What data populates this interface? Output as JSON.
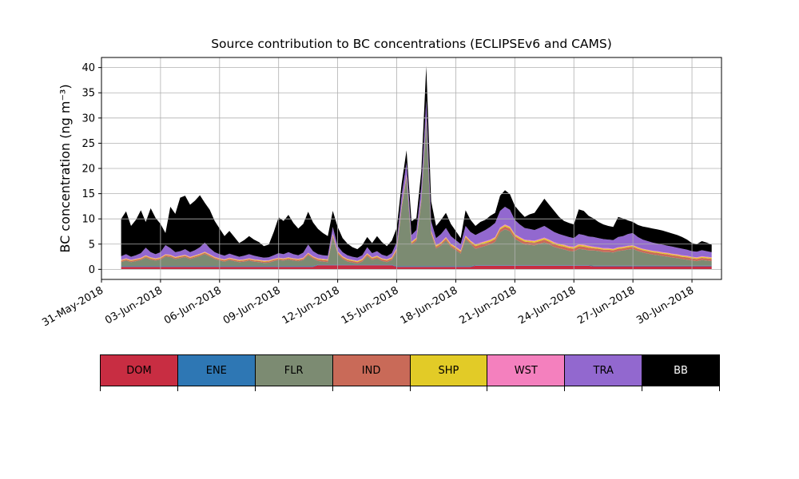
{
  "title": "Source contribution to BC concentrations (ECLIPSEv6 and CAMS)",
  "axes": {
    "ylabel": "BC concentration (ng m⁻³)",
    "y_ticks": [
      0,
      5,
      10,
      15,
      20,
      25,
      30,
      35,
      40
    ],
    "x_tick_positions": [
      0,
      3,
      6,
      9,
      12,
      15,
      18,
      21,
      24,
      27,
      30
    ],
    "x_tick_labels": [
      "31-May-2018",
      "03-Jun-2018",
      "06-Jun-2018",
      "09-Jun-2018",
      "12-Jun-2018",
      "15-Jun-2018",
      "18-Jun-2018",
      "21-Jun-2018",
      "24-Jun-2018",
      "27-Jun-2018",
      "30-Jun-2018"
    ],
    "grid_color": "#b0b0b0",
    "grid": true
  },
  "chart_data": {
    "type": "area",
    "stacked": true,
    "title": "Source contribution to BC concentrations (ECLIPSEv6 and CAMS)",
    "xlabel": "",
    "ylabel": "BC concentration (ng m⁻³)",
    "x_unit": "days since 31-May-2018",
    "xlim": [
      0,
      31.5
    ],
    "ylim": [
      -2,
      42
    ],
    "legend_position": "bottom-table",
    "x": [
      1.0,
      1.25,
      1.5,
      1.75,
      2.0,
      2.25,
      2.5,
      2.75,
      3.0,
      3.25,
      3.5,
      3.75,
      4.0,
      4.25,
      4.5,
      4.75,
      5.0,
      5.25,
      5.5,
      5.75,
      6.0,
      6.25,
      6.5,
      6.75,
      7.0,
      7.25,
      7.5,
      7.75,
      8.0,
      8.25,
      8.5,
      8.75,
      9.0,
      9.25,
      9.5,
      9.75,
      10.0,
      10.25,
      10.5,
      10.75,
      11.0,
      11.25,
      11.5,
      11.75,
      12.0,
      12.25,
      12.5,
      12.75,
      13.0,
      13.25,
      13.5,
      13.75,
      14.0,
      14.25,
      14.5,
      14.75,
      15.0,
      15.25,
      15.5,
      15.75,
      16.0,
      16.25,
      16.5,
      16.75,
      17.0,
      17.25,
      17.5,
      17.75,
      18.0,
      18.25,
      18.5,
      18.75,
      19.0,
      19.25,
      19.5,
      19.75,
      20.0,
      20.25,
      20.5,
      20.75,
      21.0,
      21.25,
      21.5,
      21.75,
      22.0,
      22.25,
      22.5,
      22.75,
      23.0,
      23.25,
      23.5,
      23.75,
      24.0,
      24.25,
      24.5,
      24.75,
      25.0,
      25.25,
      25.5,
      25.75,
      26.0,
      26.25,
      26.5,
      26.75,
      27.0,
      27.25,
      27.5,
      27.75,
      28.0,
      28.25,
      28.5,
      28.75,
      29.0,
      29.25,
      29.5,
      29.75,
      30.0,
      30.25,
      30.5,
      30.75,
      31.0
    ],
    "series": [
      {
        "name": "DOM",
        "color": "#c82d42",
        "values": [
          0.5,
          0.5,
          0.5,
          0.5,
          0.5,
          0.5,
          0.5,
          0.5,
          0.5,
          0.5,
          0.5,
          0.5,
          0.5,
          0.5,
          0.5,
          0.5,
          0.5,
          0.5,
          0.5,
          0.5,
          0.5,
          0.5,
          0.5,
          0.5,
          0.5,
          0.5,
          0.5,
          0.5,
          0.5,
          0.5,
          0.5,
          0.5,
          0.5,
          0.5,
          0.5,
          0.5,
          0.5,
          0.5,
          0.5,
          0.5,
          0.8,
          0.8,
          0.8,
          0.8,
          0.8,
          0.8,
          0.8,
          0.8,
          0.8,
          0.8,
          0.8,
          0.8,
          0.8,
          0.8,
          0.8,
          0.8,
          0.5,
          0.5,
          0.5,
          0.5,
          0.5,
          0.5,
          0.5,
          0.5,
          0.5,
          0.5,
          0.5,
          0.5,
          0.5,
          0.5,
          0.5,
          0.5,
          0.7,
          0.7,
          0.7,
          0.7,
          0.7,
          0.7,
          0.7,
          0.7,
          0.7,
          0.7,
          0.7,
          0.7,
          0.7,
          0.7,
          0.7,
          0.7,
          0.7,
          0.7,
          0.7,
          0.7,
          0.7,
          0.7,
          0.7,
          0.7,
          0.6,
          0.6,
          0.6,
          0.6,
          0.6,
          0.6,
          0.6,
          0.6,
          0.6,
          0.6,
          0.6,
          0.6,
          0.6,
          0.6,
          0.6,
          0.6,
          0.6,
          0.6,
          0.6,
          0.6,
          0.6,
          0.6,
          0.6,
          0.6,
          0.6
        ]
      },
      {
        "name": "ENE",
        "color": "#2e77b4",
        "values": [
          0.12,
          0.12,
          0.12,
          0.12,
          0.12,
          0.12,
          0.12,
          0.12,
          0.12,
          0.12,
          0.12,
          0.12,
          0.12,
          0.12,
          0.12,
          0.12,
          0.12,
          0.12,
          0.12,
          0.12,
          0.12,
          0.12,
          0.12,
          0.12,
          0.12,
          0.12,
          0.12,
          0.12,
          0.12,
          0.12,
          0.12,
          0.12,
          0.12,
          0.12,
          0.12,
          0.12,
          0.12,
          0.12,
          0.12,
          0.12,
          0.12,
          0.12,
          0.12,
          0.12,
          0.12,
          0.12,
          0.12,
          0.12,
          0.12,
          0.12,
          0.12,
          0.12,
          0.12,
          0.12,
          0.12,
          0.12,
          0.12,
          0.12,
          0.12,
          0.12,
          0.12,
          0.12,
          0.12,
          0.12,
          0.12,
          0.12,
          0.12,
          0.12,
          0.12,
          0.12,
          0.12,
          0.12,
          0.12,
          0.12,
          0.12,
          0.12,
          0.12,
          0.12,
          0.12,
          0.12,
          0.12,
          0.12,
          0.12,
          0.12,
          0.12,
          0.12,
          0.12,
          0.12,
          0.12,
          0.12,
          0.12,
          0.12,
          0.12,
          0.12,
          0.12,
          0.12,
          0.12,
          0.12,
          0.12,
          0.12,
          0.12,
          0.12,
          0.12,
          0.12,
          0.12,
          0.12,
          0.12,
          0.12,
          0.12,
          0.12,
          0.12,
          0.12,
          0.12,
          0.12,
          0.12,
          0.12,
          0.12,
          0.12,
          0.12,
          0.12,
          0.12
        ]
      },
      {
        "name": "FLR",
        "color": "#7c8b72",
        "values": [
          0.81,
          1.11,
          0.81,
          1.01,
          1.21,
          1.71,
          1.31,
          1.11,
          1.31,
          1.91,
          1.81,
          1.41,
          1.61,
          1.81,
          1.41,
          1.71,
          2.01,
          2.41,
          1.91,
          1.41,
          1.11,
          0.91,
          1.21,
          1.01,
          0.81,
          0.91,
          1.11,
          0.91,
          0.81,
          0.66,
          0.71,
          1.01,
          1.21,
          1.11,
          1.31,
          1.11,
          1.01,
          1.21,
          2.21,
          1.51,
          0.73,
          0.63,
          0.53,
          5.53,
          2.13,
          1.13,
          0.63,
          0.43,
          0.23,
          0.63,
          1.73,
          0.93,
          1.23,
          0.73,
          0.53,
          0.93,
          2.91,
          11.51,
          17.51,
          4.21,
          5.01,
          12.81,
          28.91,
          6.41,
          3.51,
          4.11,
          5.11,
          3.81,
          3.21,
          2.51,
          5.41,
          4.41,
          3.23,
          3.53,
          3.83,
          4.13,
          4.63,
          6.53,
          7.13,
          6.73,
          5.23,
          4.63,
          4.13,
          4.03,
          3.93,
          4.23,
          4.53,
          4.13,
          3.63,
          3.33,
          3.13,
          2.83,
          2.73,
          3.23,
          3.13,
          2.93,
          3.01,
          2.91,
          2.71,
          2.71,
          2.61,
          2.91,
          3.01,
          3.21,
          3.31,
          2.91,
          2.61,
          2.41,
          2.21,
          2.11,
          1.91,
          1.81,
          1.61,
          1.51,
          1.31,
          1.21,
          1.01,
          0.91,
          1.11,
          1.01,
          0.91
        ]
      },
      {
        "name": "IND",
        "color": "#c96a58",
        "values": [
          0.25,
          0.25,
          0.25,
          0.25,
          0.25,
          0.25,
          0.25,
          0.25,
          0.25,
          0.25,
          0.25,
          0.25,
          0.25,
          0.25,
          0.25,
          0.25,
          0.25,
          0.25,
          0.25,
          0.25,
          0.25,
          0.25,
          0.25,
          0.25,
          0.25,
          0.25,
          0.25,
          0.25,
          0.25,
          0.25,
          0.25,
          0.25,
          0.25,
          0.25,
          0.25,
          0.25,
          0.25,
          0.25,
          0.25,
          0.25,
          0.3,
          0.3,
          0.3,
          0.3,
          0.3,
          0.3,
          0.3,
          0.3,
          0.3,
          0.3,
          0.3,
          0.3,
          0.3,
          0.3,
          0.3,
          0.3,
          0.35,
          0.35,
          0.35,
          0.35,
          0.35,
          0.35,
          0.35,
          0.35,
          0.35,
          0.35,
          0.35,
          0.35,
          0.35,
          0.35,
          0.35,
          0.35,
          0.55,
          0.55,
          0.55,
          0.55,
          0.55,
          0.55,
          0.55,
          0.55,
          0.55,
          0.55,
          0.55,
          0.55,
          0.55,
          0.55,
          0.55,
          0.55,
          0.55,
          0.55,
          0.55,
          0.55,
          0.55,
          0.55,
          0.55,
          0.55,
          0.45,
          0.45,
          0.45,
          0.45,
          0.45,
          0.45,
          0.45,
          0.45,
          0.45,
          0.45,
          0.45,
          0.45,
          0.45,
          0.45,
          0.45,
          0.45,
          0.45,
          0.45,
          0.45,
          0.45,
          0.45,
          0.45,
          0.45,
          0.45,
          0.45
        ]
      },
      {
        "name": "SHP",
        "color": "#e2cb27",
        "values": [
          0.12,
          0.12,
          0.12,
          0.12,
          0.12,
          0.12,
          0.12,
          0.12,
          0.12,
          0.12,
          0.12,
          0.12,
          0.12,
          0.12,
          0.12,
          0.12,
          0.12,
          0.12,
          0.12,
          0.12,
          0.12,
          0.12,
          0.12,
          0.12,
          0.12,
          0.12,
          0.12,
          0.12,
          0.12,
          0.12,
          0.12,
          0.12,
          0.12,
          0.12,
          0.12,
          0.12,
          0.12,
          0.12,
          0.12,
          0.12,
          0.15,
          0.15,
          0.15,
          0.15,
          0.15,
          0.15,
          0.15,
          0.15,
          0.15,
          0.15,
          0.15,
          0.15,
          0.15,
          0.15,
          0.15,
          0.15,
          0.2,
          0.2,
          0.2,
          0.2,
          0.2,
          0.2,
          0.2,
          0.2,
          0.2,
          0.2,
          0.2,
          0.2,
          0.2,
          0.2,
          0.2,
          0.2,
          0.25,
          0.25,
          0.25,
          0.25,
          0.25,
          0.25,
          0.25,
          0.25,
          0.25,
          0.25,
          0.25,
          0.25,
          0.25,
          0.25,
          0.25,
          0.25,
          0.25,
          0.25,
          0.25,
          0.25,
          0.25,
          0.25,
          0.25,
          0.25,
          0.2,
          0.2,
          0.2,
          0.2,
          0.2,
          0.2,
          0.2,
          0.2,
          0.2,
          0.2,
          0.2,
          0.2,
          0.2,
          0.2,
          0.2,
          0.2,
          0.2,
          0.2,
          0.2,
          0.2,
          0.2,
          0.2,
          0.2,
          0.2,
          0.2
        ]
      },
      {
        "name": "WST",
        "color": "#f480be",
        "values": [
          0.1,
          0.1,
          0.1,
          0.1,
          0.1,
          0.1,
          0.1,
          0.1,
          0.1,
          0.1,
          0.1,
          0.1,
          0.1,
          0.1,
          0.1,
          0.1,
          0.1,
          0.1,
          0.1,
          0.1,
          0.1,
          0.1,
          0.1,
          0.1,
          0.1,
          0.1,
          0.1,
          0.1,
          0.1,
          0.1,
          0.1,
          0.1,
          0.1,
          0.1,
          0.1,
          0.1,
          0.1,
          0.1,
          0.1,
          0.1,
          0.1,
          0.1,
          0.1,
          0.1,
          0.1,
          0.1,
          0.1,
          0.1,
          0.1,
          0.1,
          0.1,
          0.1,
          0.1,
          0.1,
          0.1,
          0.1,
          0.12,
          0.12,
          0.12,
          0.12,
          0.12,
          0.12,
          0.12,
          0.12,
          0.12,
          0.12,
          0.12,
          0.12,
          0.12,
          0.12,
          0.12,
          0.12,
          0.15,
          0.15,
          0.15,
          0.15,
          0.15,
          0.15,
          0.15,
          0.15,
          0.15,
          0.15,
          0.15,
          0.15,
          0.15,
          0.15,
          0.15,
          0.15,
          0.15,
          0.15,
          0.15,
          0.15,
          0.15,
          0.15,
          0.15,
          0.15,
          0.12,
          0.12,
          0.12,
          0.12,
          0.12,
          0.12,
          0.12,
          0.12,
          0.12,
          0.12,
          0.12,
          0.12,
          0.12,
          0.12,
          0.12,
          0.12,
          0.12,
          0.12,
          0.12,
          0.12,
          0.12,
          0.12,
          0.12,
          0.12,
          0.12
        ]
      },
      {
        "name": "TRA",
        "color": "#9268cf",
        "values": [
          0.7,
          0.8,
          0.6,
          0.7,
          0.9,
          1.5,
          1.0,
          0.8,
          1.0,
          1.8,
          1.3,
          0.9,
          0.9,
          1.1,
          0.9,
          1.0,
          1.3,
          1.8,
          1.2,
          0.9,
          0.8,
          0.7,
          0.8,
          0.7,
          0.6,
          0.7,
          0.8,
          0.7,
          0.6,
          0.55,
          0.6,
          0.7,
          0.9,
          0.8,
          1.0,
          0.8,
          0.7,
          1.0,
          1.6,
          1.0,
          0.8,
          0.7,
          0.7,
          1.4,
          1.0,
          0.8,
          0.7,
          0.6,
          0.6,
          0.7,
          1.2,
          0.8,
          0.9,
          0.7,
          0.6,
          0.8,
          1.2,
          2.0,
          2.4,
          1.3,
          1.5,
          2.4,
          3.4,
          1.8,
          1.4,
          1.6,
          1.8,
          1.5,
          1.3,
          1.2,
          1.9,
          1.7,
          1.8,
          2.0,
          2.2,
          2.5,
          2.8,
          3.3,
          3.5,
          3.3,
          2.8,
          2.5,
          2.3,
          2.2,
          2.1,
          2.2,
          2.3,
          2.1,
          2.0,
          1.9,
          1.8,
          1.8,
          1.7,
          2.0,
          1.9,
          1.8,
          1.9,
          1.8,
          1.8,
          1.7,
          1.7,
          2.0,
          2.1,
          2.3,
          2.4,
          2.0,
          1.8,
          1.7,
          1.6,
          1.5,
          1.5,
          1.4,
          1.4,
          1.3,
          1.3,
          1.2,
          1.1,
          1.1,
          1.2,
          1.1,
          1.0
        ]
      },
      {
        "name": "BB",
        "color": "#000000",
        "values": [
          7.4,
          8.5,
          6.1,
          7.0,
          8.5,
          5.1,
          8.7,
          7.2,
          5.6,
          2.4,
          8.2,
          7.6,
          10.6,
          10.6,
          9.4,
          9.8,
          10.3,
          7.9,
          7.6,
          6.2,
          5.1,
          3.9,
          4.5,
          3.6,
          2.7,
          3.1,
          3.6,
          3.2,
          2.9,
          2.3,
          2.5,
          4.6,
          7.1,
          6.6,
          7.4,
          6.2,
          5.3,
          5.7,
          6.5,
          5.7,
          5.0,
          4.4,
          3.9,
          3.2,
          3.8,
          2.8,
          2.3,
          1.9,
          1.7,
          2.0,
          2.0,
          2.0,
          3.0,
          2.5,
          2.0,
          2.5,
          2.8,
          2.2,
          2.4,
          2.7,
          2.4,
          3.0,
          6.7,
          4.0,
          2.4,
          2.8,
          3.0,
          2.4,
          1.8,
          1.2,
          3.1,
          2.4,
          1.8,
          2.1,
          2.0,
          2.2,
          2.0,
          3.0,
          3.3,
          3.1,
          2.8,
          2.5,
          2.2,
          2.9,
          3.4,
          4.4,
          5.4,
          4.8,
          4.2,
          3.4,
          2.9,
          2.8,
          2.7,
          4.9,
          4.8,
          4.1,
          3.7,
          3.2,
          2.9,
          2.7,
          2.6,
          4.0,
          3.5,
          2.7,
          2.2,
          2.4,
          2.6,
          2.7,
          2.8,
          2.8,
          2.8,
          2.7,
          2.6,
          2.5,
          2.3,
          2.0,
          1.6,
          1.5,
          1.8,
          1.7,
          1.5
        ]
      }
    ]
  },
  "legend": {
    "entries": [
      {
        "label": "DOM",
        "color": "#c82d42",
        "text_color": "#000000"
      },
      {
        "label": "ENE",
        "color": "#2e77b4",
        "text_color": "#000000"
      },
      {
        "label": "FLR",
        "color": "#7c8b72",
        "text_color": "#000000"
      },
      {
        "label": "IND",
        "color": "#c96a58",
        "text_color": "#000000"
      },
      {
        "label": "SHP",
        "color": "#e2cb27",
        "text_color": "#000000"
      },
      {
        "label": "WST",
        "color": "#f480be",
        "text_color": "#000000"
      },
      {
        "label": "TRA",
        "color": "#9268cf",
        "text_color": "#000000"
      },
      {
        "label": "BB",
        "color": "#000000",
        "text_color": "#ffffff"
      }
    ]
  }
}
